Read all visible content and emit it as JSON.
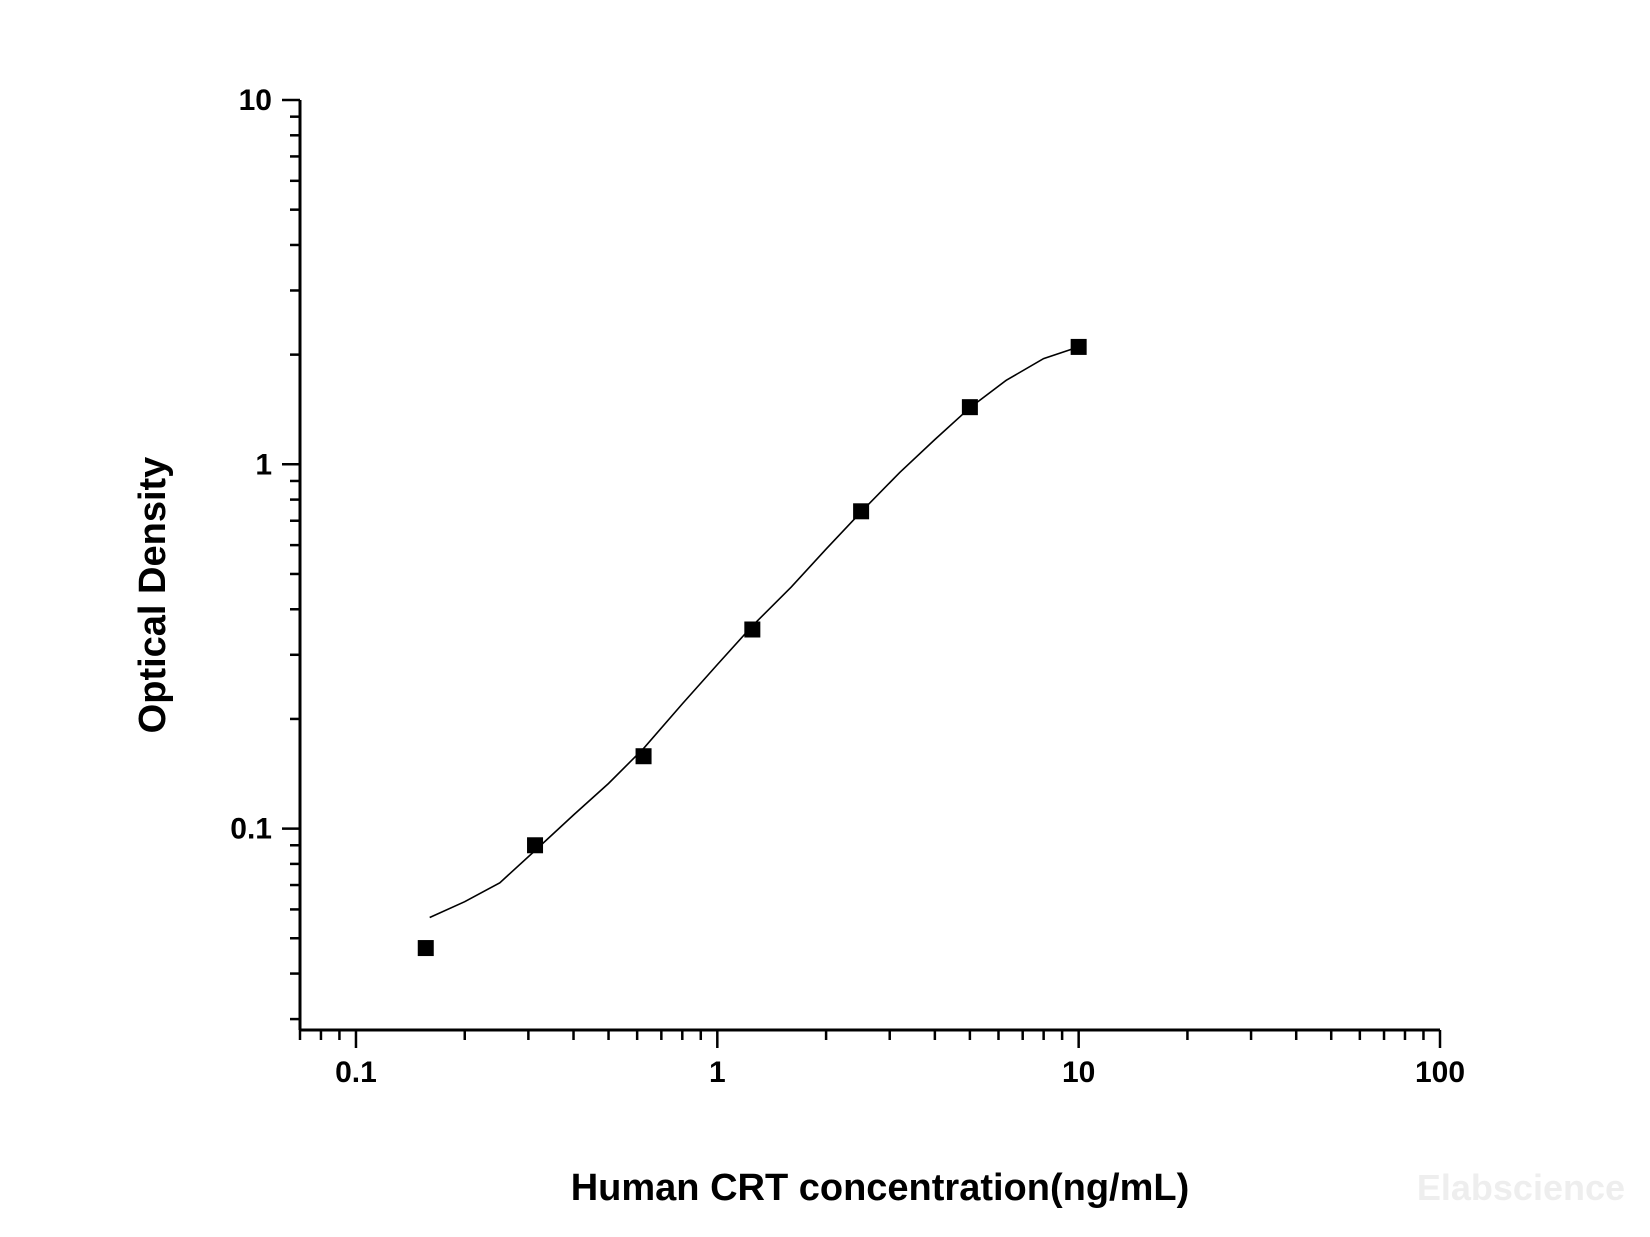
{
  "chart_data": {
    "type": "scatter",
    "x_scale": "log",
    "y_scale": "log",
    "xlabel": "Human CRT concentration(ng/mL)",
    "ylabel": "Optical Density",
    "xlim": [
      0.07,
      100
    ],
    "ylim": [
      0.028,
      10
    ],
    "x_ticks": [
      {
        "value": 0.1,
        "label": "0.1"
      },
      {
        "value": 1,
        "label": "1"
      },
      {
        "value": 10,
        "label": "10"
      },
      {
        "value": 100,
        "label": "100"
      }
    ],
    "y_ticks": [
      {
        "value": 0.1,
        "label": "0.1"
      },
      {
        "value": 1,
        "label": "1"
      },
      {
        "value": 10,
        "label": "10"
      }
    ],
    "series": [
      {
        "marker": "square",
        "color": "#000000",
        "points": [
          {
            "x": 0.156,
            "y": 0.047
          },
          {
            "x": 0.313,
            "y": 0.09
          },
          {
            "x": 0.625,
            "y": 0.158
          },
          {
            "x": 1.25,
            "y": 0.352
          },
          {
            "x": 2.5,
            "y": 0.743
          },
          {
            "x": 5,
            "y": 1.435
          },
          {
            "x": 10,
            "y": 2.1
          }
        ]
      }
    ],
    "fit_curve": {
      "color": "#000000",
      "points": [
        {
          "x": 0.16,
          "y": 0.057
        },
        {
          "x": 0.2,
          "y": 0.063
        },
        {
          "x": 0.25,
          "y": 0.071
        },
        {
          "x": 0.313,
          "y": 0.087
        },
        {
          "x": 0.4,
          "y": 0.109
        },
        {
          "x": 0.5,
          "y": 0.133
        },
        {
          "x": 0.625,
          "y": 0.166
        },
        {
          "x": 0.8,
          "y": 0.22
        },
        {
          "x": 1.0,
          "y": 0.282
        },
        {
          "x": 1.25,
          "y": 0.36
        },
        {
          "x": 1.6,
          "y": 0.46
        },
        {
          "x": 2.0,
          "y": 0.585
        },
        {
          "x": 2.5,
          "y": 0.74
        },
        {
          "x": 3.2,
          "y": 0.95
        },
        {
          "x": 4.0,
          "y": 1.17
        },
        {
          "x": 5.0,
          "y": 1.43
        },
        {
          "x": 6.3,
          "y": 1.7
        },
        {
          "x": 8.0,
          "y": 1.95
        },
        {
          "x": 10.0,
          "y": 2.1
        }
      ]
    },
    "grid": false,
    "legend": "none"
  },
  "watermark": "Elabscience"
}
